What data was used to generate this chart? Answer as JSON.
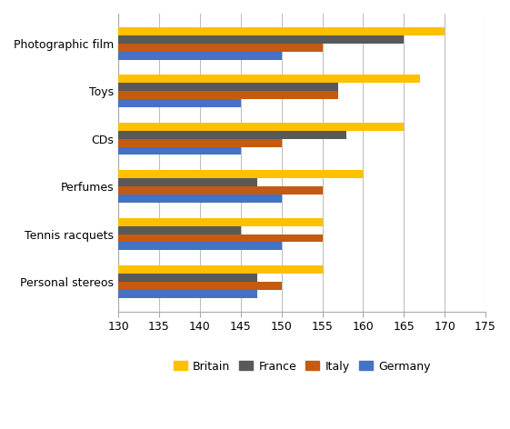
{
  "categories": [
    "Photographic film",
    "Toys",
    "CDs",
    "Perfumes",
    "Tennis racquets",
    "Personal stereos"
  ],
  "series": {
    "Britain": [
      170,
      167,
      165,
      160,
      155,
      155
    ],
    "France": [
      165,
      157,
      158,
      147,
      145,
      147
    ],
    "Italy": [
      155,
      157,
      150,
      155,
      155,
      150
    ],
    "Germany": [
      150,
      145,
      145,
      150,
      150,
      147
    ]
  },
  "colors": {
    "Britain": "#FFC000",
    "France": "#595959",
    "Italy": "#C55A11",
    "Germany": "#4472C4"
  },
  "xlim": [
    130,
    175
  ],
  "xticks": [
    130,
    135,
    140,
    145,
    150,
    155,
    160,
    165,
    170,
    175
  ],
  "background_color": "#FFFFFF",
  "grid_color": "#BFBFBF"
}
